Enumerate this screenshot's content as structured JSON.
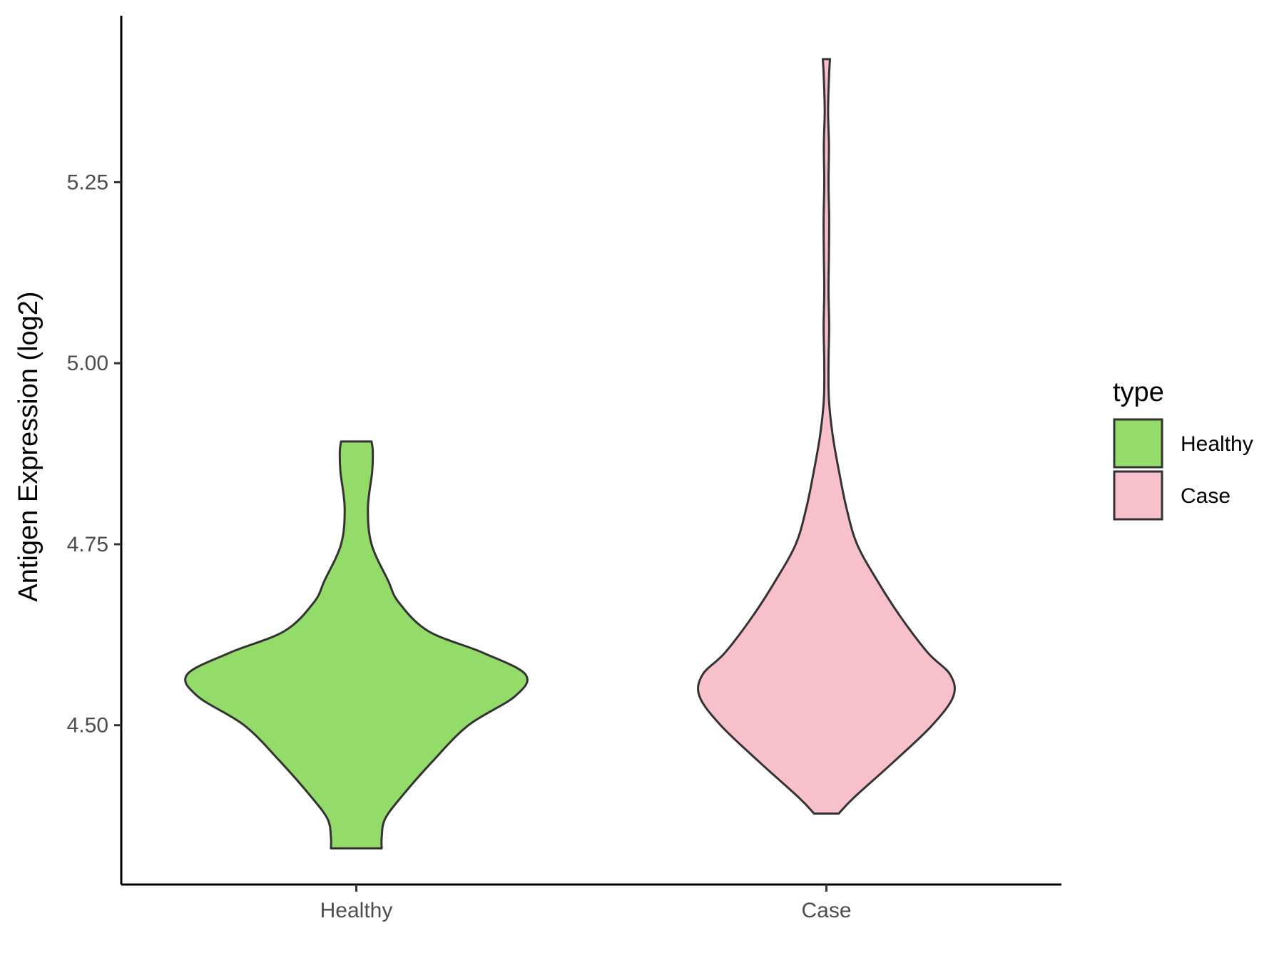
{
  "chart_data": {
    "type": "violin",
    "categories": [
      "Healthy",
      "Case"
    ],
    "ylabel": "Antigen Expression (log2)",
    "xlabel": "",
    "ylim": [
      4.28,
      5.48
    ],
    "y_ticks": [
      "4.50",
      "4.75",
      "5.00",
      "5.25"
    ],
    "y_tick_values": [
      4.5,
      4.75,
      5.0,
      5.25
    ],
    "grid": false,
    "legend": {
      "title": "type",
      "position": "right",
      "entries": [
        "Healthy",
        "Case"
      ]
    },
    "series": [
      {
        "name": "Healthy",
        "color": "#93dc6a",
        "ymin": 4.33,
        "ymax": 4.892,
        "profile": [
          [
            4.33,
            0.12
          ],
          [
            4.345,
            0.12
          ],
          [
            4.37,
            0.135
          ],
          [
            4.4,
            0.21
          ],
          [
            4.45,
            0.36
          ],
          [
            4.5,
            0.53
          ],
          [
            4.54,
            0.75
          ],
          [
            4.57,
            0.8
          ],
          [
            4.6,
            0.6
          ],
          [
            4.63,
            0.34
          ],
          [
            4.67,
            0.2
          ],
          [
            4.7,
            0.15
          ],
          [
            4.75,
            0.072
          ],
          [
            4.8,
            0.055
          ],
          [
            4.85,
            0.075
          ],
          [
            4.878,
            0.078
          ],
          [
            4.892,
            0.072
          ]
        ]
      },
      {
        "name": "Case",
        "color": "#f8c0cb",
        "ymin": 4.378,
        "ymax": 5.42,
        "profile": [
          [
            4.378,
            0.058
          ],
          [
            4.4,
            0.13
          ],
          [
            4.45,
            0.32
          ],
          [
            4.5,
            0.5
          ],
          [
            4.54,
            0.6
          ],
          [
            4.57,
            0.585
          ],
          [
            4.6,
            0.48
          ],
          [
            4.65,
            0.35
          ],
          [
            4.7,
            0.24
          ],
          [
            4.75,
            0.145
          ],
          [
            4.8,
            0.095
          ],
          [
            4.85,
            0.06
          ],
          [
            4.9,
            0.03
          ],
          [
            4.95,
            0.012
          ],
          [
            5.0,
            0.01
          ],
          [
            5.05,
            0.013
          ],
          [
            5.1,
            0.01
          ],
          [
            5.15,
            0.012
          ],
          [
            5.2,
            0.013
          ],
          [
            5.25,
            0.01
          ],
          [
            5.3,
            0.012
          ],
          [
            5.35,
            0.008
          ],
          [
            5.4,
            0.013
          ],
          [
            5.42,
            0.017
          ]
        ]
      }
    ]
  }
}
